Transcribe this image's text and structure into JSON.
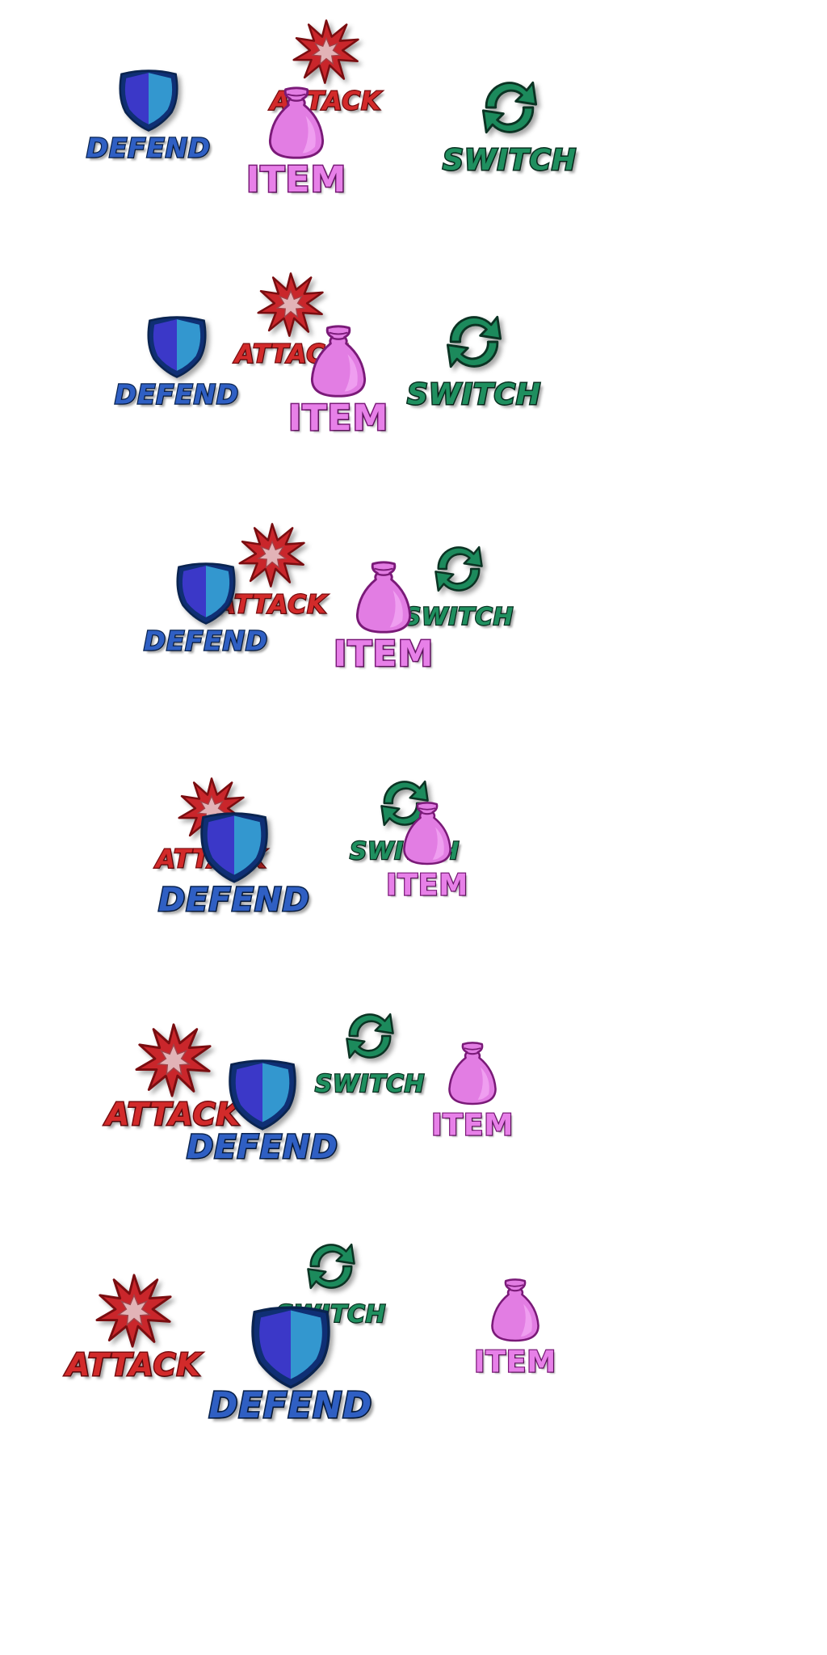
{
  "buttons": {
    "attack": {
      "label": "ATTACK",
      "icon": "starburst-icon",
      "text_color": "#d22a2a",
      "icon_color": "#c9262b",
      "icon_center_color": "#e2b3b7"
    },
    "defend": {
      "label": "DEFEND",
      "icon": "shield-icon",
      "text_color": "#2f5fc3",
      "icon_color_left": "#3b38c8",
      "icon_color_right": "#3397cf"
    },
    "switch": {
      "label": "SWITCH",
      "icon": "cycle-arrows-icon",
      "text_color": "#1f8f5f",
      "icon_color": "#1c8a5c"
    },
    "item": {
      "label": "ITEM",
      "icon": "bag-icon",
      "text_color": "#e780e8",
      "icon_color": "#e27de3"
    }
  },
  "frames": [
    {
      "id": 0
    },
    {
      "id": 1
    },
    {
      "id": 2
    },
    {
      "id": 3
    },
    {
      "id": 4
    },
    {
      "id": 5
    }
  ]
}
